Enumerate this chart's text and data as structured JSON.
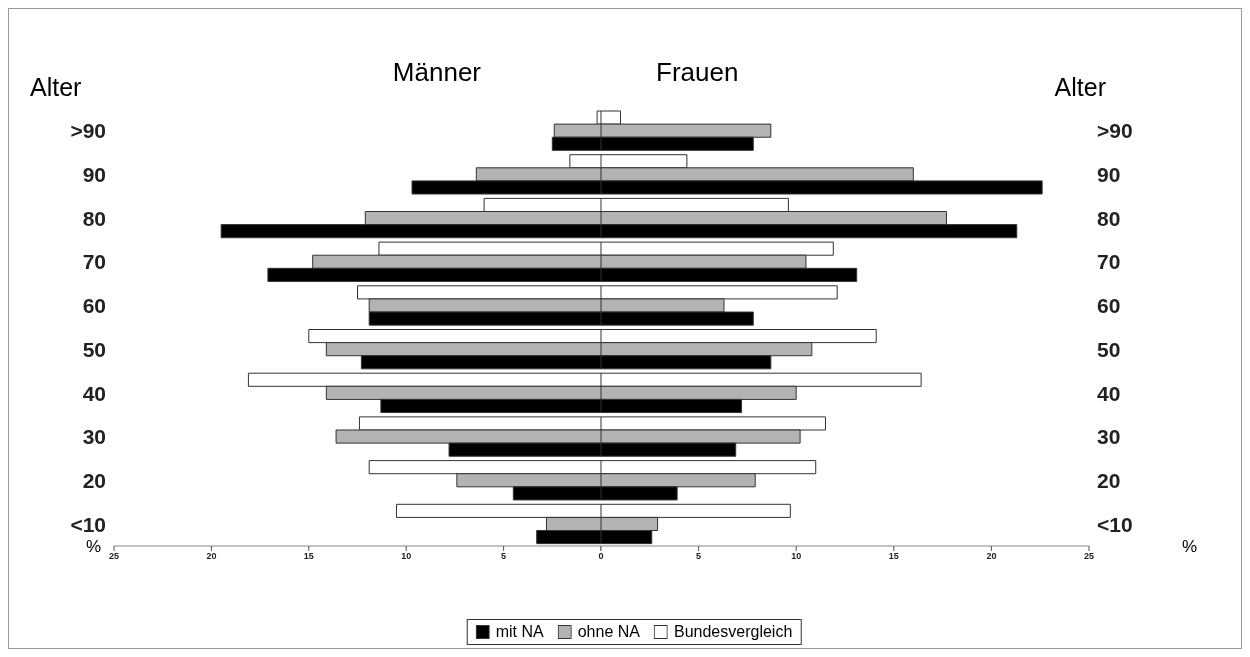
{
  "chart_data": [
    {
      "type": "bar",
      "orientation": "horizontal",
      "title": "Männer",
      "ylabel": "Alter",
      "xlabel": "%",
      "categories": [
        ">90",
        "90",
        "80",
        "70",
        "60",
        "50",
        "40",
        "30",
        "20",
        "<10"
      ],
      "xlim": [
        25,
        0
      ],
      "xticks": [
        25,
        20,
        15,
        10,
        5,
        {
          "value": 0,
          "label": null
        }
      ],
      "series": [
        {
          "color": "#ffffff",
          "values": [
            0.2,
            1.6,
            6.0,
            11.4,
            12.5,
            15.0,
            18.1,
            12.4,
            11.9,
            10.5
          ]
        },
        {
          "color": "#b3b3b3",
          "values": [
            2.4,
            6.4,
            12.1,
            14.8,
            11.9,
            14.1,
            14.1,
            13.6,
            7.4,
            2.8
          ]
        },
        {
          "color": "#000000",
          "values": [
            2.5,
            9.7,
            19.5,
            17.1,
            11.9,
            12.3,
            11.3,
            7.8,
            4.5,
            3.3
          ]
        }
      ]
    },
    {
      "type": "bar",
      "orientation": "horizontal",
      "title": "Frauen",
      "ylabel": "Alter",
      "xlabel": "%",
      "categories": [
        ">90",
        "90",
        "80",
        "70",
        "60",
        "50",
        "40",
        "30",
        "20",
        "<10"
      ],
      "xlim": [
        0,
        25
      ],
      "xticks": [
        0,
        5,
        10,
        15,
        20,
        25
      ],
      "legend": "bottom",
      "series": [
        {
          "name": "Bundesvergleich",
          "color": "#ffffff",
          "values": [
            1.0,
            4.4,
            9.6,
            11.9,
            12.1,
            14.1,
            16.4,
            11.5,
            11.0,
            9.7
          ]
        },
        {
          "name": "ohne NA",
          "color": "#b3b3b3",
          "values": [
            8.7,
            16.0,
            17.7,
            10.5,
            6.3,
            10.8,
            10.0,
            10.2,
            7.9,
            2.9
          ]
        },
        {
          "name": "mit NA",
          "color": "#000000",
          "values": [
            7.8,
            22.6,
            21.3,
            13.1,
            7.8,
            8.7,
            7.2,
            6.9,
            3.9,
            2.6
          ]
        }
      ]
    }
  ]
}
